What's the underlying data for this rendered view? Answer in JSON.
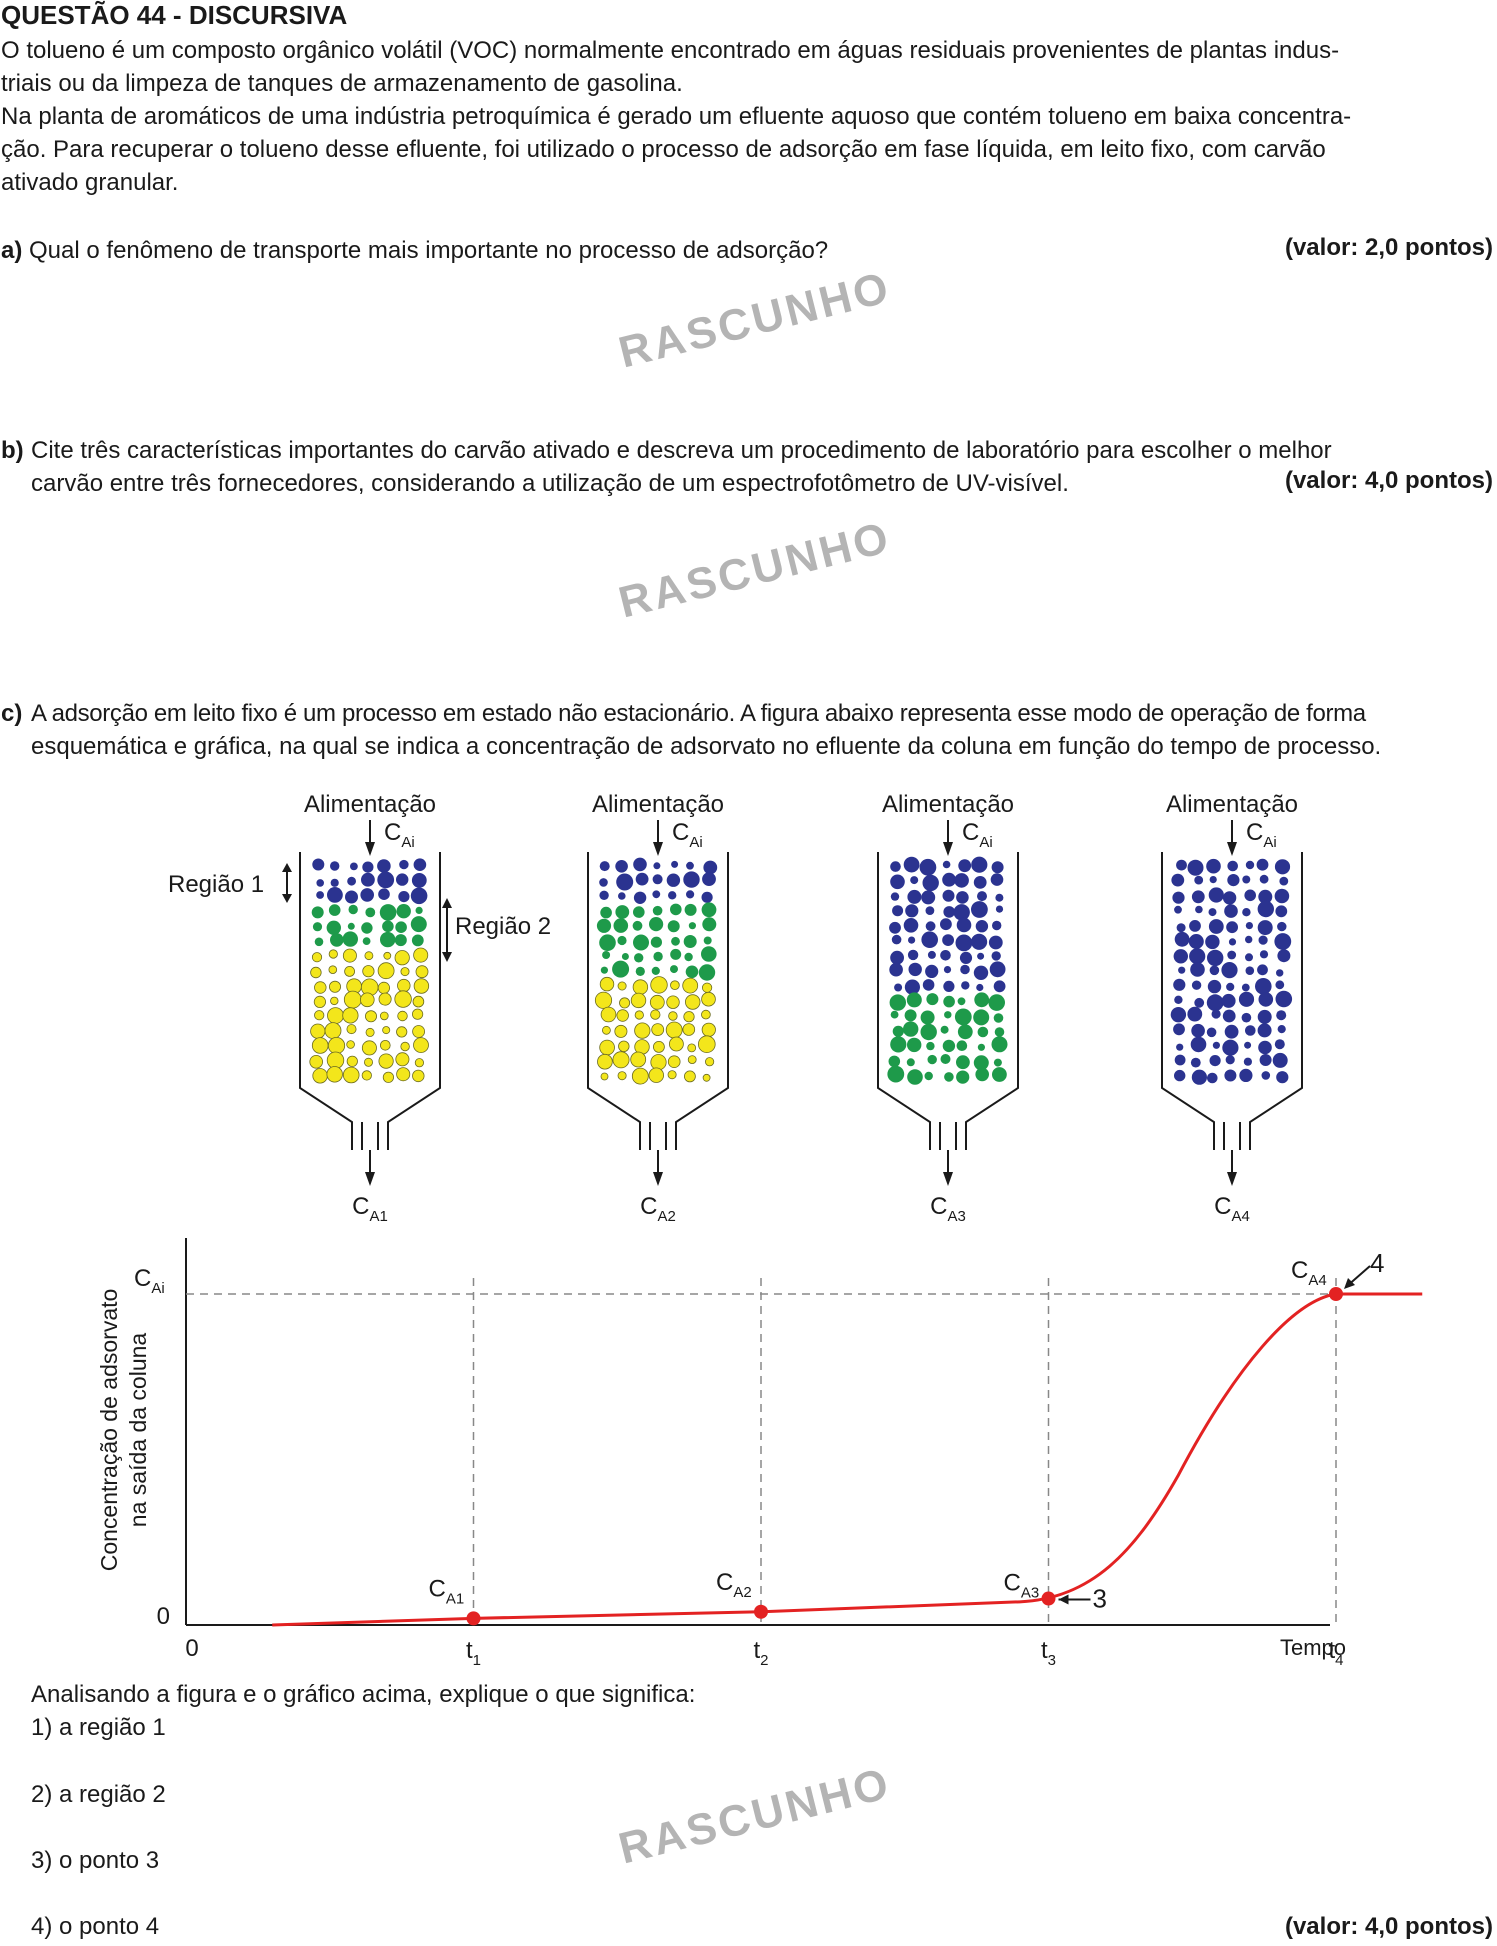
{
  "header": {
    "title": "QUESTÃO 44 - DISCURSIVA"
  },
  "intro": {
    "line1": "O tolueno é um composto orgânico volátil (VOC) normalmente encontrado em águas residuais provenientes de plantas indus-",
    "line2": "triais ou da limpeza de tanques de armazenamento de gasolina.",
    "line3": "Na planta de aromáticos de uma indústria petroquímica é gerado um efluente aquoso que contém tolueno em baixa concentra-",
    "line4": "ção. Para recuperar o tolueno desse efluente, foi utilizado o processo de adsorção em fase líquida, em leito fixo, com carvão",
    "line5": "ativado granular."
  },
  "qa": {
    "letter": "a)",
    "text": "Qual o fenômeno de transporte mais importante no processo de adsorção?",
    "value": "(valor: 2,0 pontos)"
  },
  "qb": {
    "letter": "b)",
    "line1": "Cite três características importantes do carvão ativado e descreva um procedimento de laboratório para escolher o melhor",
    "line2": "carvão entre três fornecedores, considerando a utilização de um espectrofotômetro de UV-visível.",
    "value": "(valor: 4,0 pontos)"
  },
  "qc": {
    "letter": "c)",
    "line1": "A adsorção em leito fixo é um processo em estado não estacionário. A figura abaixo representa esse modo de operação de forma",
    "line2": "esquemática e gráfica, na qual se indica a concentração de adsorvato no efluente da coluna em função do tempo de processo.",
    "value": "(valor: 4,0 pontos)"
  },
  "watermark": "RASCUNHO",
  "columns": {
    "feed_label": "Alimentação",
    "c": "C",
    "sub_ai": "Ai",
    "outlet_subs": [
      "A1",
      "A2",
      "A3",
      "A4"
    ],
    "region1": "Região 1",
    "region2": "Região 2"
  },
  "chart_data": {
    "type": "line",
    "series": [
      {
        "x": [
          0.3,
          1,
          2,
          3,
          3.3,
          3.6,
          4,
          4.3
        ],
        "y": [
          0,
          0.02,
          0.04,
          0.08,
          0.28,
          0.73,
          1,
          1
        ]
      }
    ],
    "points": [
      {
        "label": "C",
        "sub": "A1",
        "x": 1,
        "y": 0.02
      },
      {
        "label": "C",
        "sub": "A2",
        "x": 2,
        "y": 0.04
      },
      {
        "label": "C",
        "sub": "A3",
        "x": 3,
        "y": 0.08
      },
      {
        "label": "C",
        "sub": "A4",
        "x": 4,
        "y": 1
      }
    ],
    "xticks": [
      {
        "base": "t",
        "sub": "1"
      },
      {
        "base": "t",
        "sub": "2"
      },
      {
        "base": "t",
        "sub": "3"
      },
      {
        "base": "t",
        "sub": "4"
      }
    ],
    "x_origin": "0",
    "y_origin": "0",
    "y_top": {
      "base": "C",
      "sub": "Ai"
    },
    "xlabel": "Tempo",
    "ylabel_line1": "Concentração de adsorvato",
    "ylabel_line2": "na saída da coluna",
    "annot3": "3",
    "annot4": "4"
  },
  "analysis": {
    "prompt": "Analisando a figura e o gráfico acima, explique o que significa:",
    "items": [
      "1) a região 1",
      "2) a região 2",
      "3) o ponto 3",
      "4) o ponto 4"
    ]
  },
  "colors": {
    "navy": "#2b3390",
    "green": "#1e9a4a",
    "yellow": "#f3e61b",
    "red": "#e32222"
  }
}
